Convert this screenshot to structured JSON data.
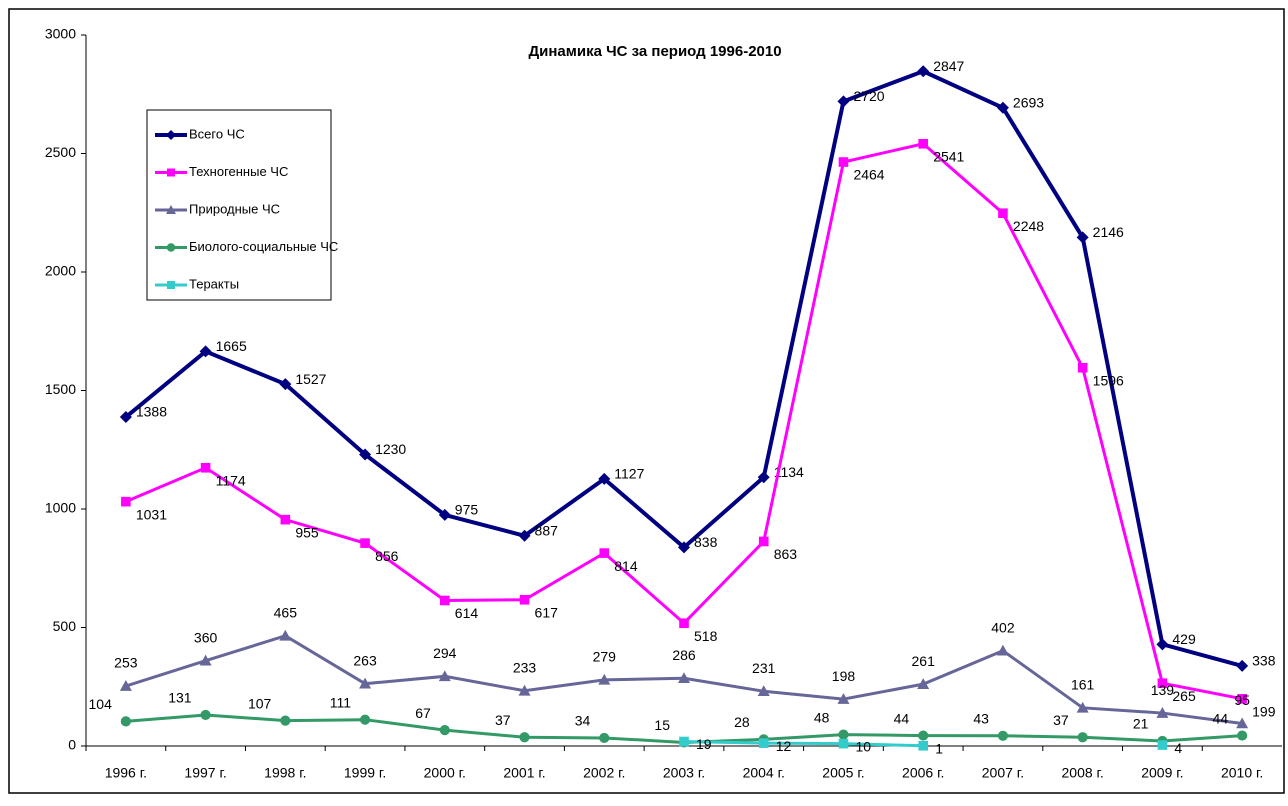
{
  "chart_data": {
    "type": "line",
    "title": "Динамика ЧС за период 1996-2010",
    "categories": [
      "1996 г.",
      "1997 г.",
      "1998 г.",
      "1999 г.",
      "2000 г.",
      "2001 г.",
      "2002 г.",
      "2003 г.",
      "2004 г.",
      "2005 г.",
      "2006 г.",
      "2007 г.",
      "2008 г.",
      "2009 г.",
      "2010 г."
    ],
    "series": [
      {
        "name": "Всего ЧС",
        "color": "#000080",
        "marker": "diamond",
        "values": [
          1388,
          1665,
          1527,
          1230,
          975,
          887,
          1127,
          838,
          1134,
          2720,
          2847,
          2693,
          2146,
          429,
          338
        ]
      },
      {
        "name": "Техногенные ЧС",
        "color": "#ff00ff",
        "marker": "square",
        "values": [
          1031,
          1174,
          955,
          856,
          614,
          617,
          814,
          518,
          863,
          2464,
          2541,
          2248,
          1596,
          265,
          199
        ]
      },
      {
        "name": "Природные ЧС",
        "color": "#666699",
        "marker": "triangle",
        "values": [
          253,
          360,
          465,
          263,
          294,
          233,
          279,
          286,
          231,
          198,
          261,
          402,
          161,
          139,
          95
        ]
      },
      {
        "name": "Биолого-социальные ЧС",
        "color": "#339966",
        "marker": "circle",
        "values": [
          104,
          131,
          107,
          111,
          67,
          37,
          34,
          15,
          28,
          48,
          44,
          43,
          37,
          21,
          44
        ]
      },
      {
        "name": "Теракты",
        "color": "#33cccc",
        "marker": "square",
        "values": [
          null,
          null,
          null,
          null,
          null,
          null,
          null,
          19,
          12,
          10,
          1,
          null,
          null,
          4,
          null
        ]
      }
    ],
    "ylim": [
      0,
      3000
    ],
    "yticks": [
      0,
      500,
      1000,
      1500,
      2000,
      2500,
      3000
    ],
    "legend": "upper left"
  }
}
